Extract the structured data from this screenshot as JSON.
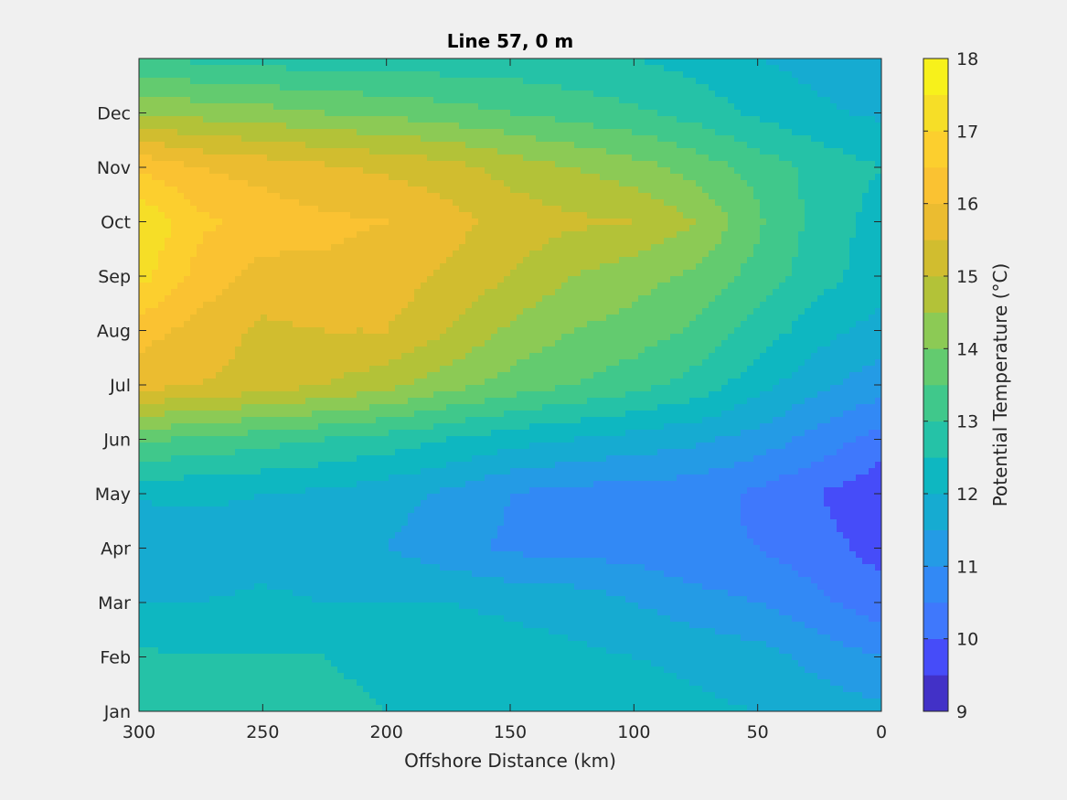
{
  "chart_data": {
    "type": "heatmap",
    "subtype": "filled-contour",
    "title": "Line 57, 0 m",
    "xlabel": "Offshore Distance (km)",
    "ylabel": "",
    "colorbar_label": "Potential Temperature (°C)",
    "x_reversed": true,
    "xlim": [
      0,
      300
    ],
    "ylim_months": [
      0,
      12
    ],
    "x_ticks": [
      300,
      250,
      200,
      150,
      100,
      50,
      0
    ],
    "y_tick_labels": [
      "Jan",
      "Feb",
      "Mar",
      "Apr",
      "May",
      "Jun",
      "Jul",
      "Aug",
      "Sep",
      "Oct",
      "Nov",
      "Dec"
    ],
    "colorbar_ticks": [
      9,
      10,
      11,
      12,
      13,
      14,
      15,
      16,
      17,
      18
    ],
    "clim": [
      9,
      18
    ],
    "contour_step": 0.5,
    "colormap": [
      "#3e26a8",
      "#4743f8",
      "#3f7bfc",
      "#2d8ff2",
      "#1aa7d7",
      "#0cb6c3",
      "#2ac4a2",
      "#4ecb7c",
      "#84cc5b",
      "#b6c136",
      "#dcbb2c",
      "#f9bd33",
      "#fcce2f",
      "#f5e125",
      "#f9fb15"
    ],
    "x_km": [
      0,
      25,
      50,
      75,
      100,
      125,
      150,
      175,
      200,
      225,
      250,
      275,
      300
    ],
    "y_month": [
      0,
      1,
      2,
      3,
      4,
      5,
      6,
      7,
      8,
      9,
      10,
      11,
      12
    ],
    "z_celsius": [
      [
        11.6,
        11.8,
        12.0,
        12.1,
        12.2,
        12.3,
        12.3,
        12.4,
        12.5,
        12.6,
        12.7,
        12.8,
        13.0
      ],
      [
        11.0,
        11.3,
        11.7,
        11.9,
        12.0,
        12.1,
        12.2,
        12.3,
        12.4,
        12.5,
        12.5,
        12.5,
        12.6
      ],
      [
        10.2,
        10.6,
        11.0,
        11.2,
        11.5,
        11.8,
        11.9,
        12.0,
        12.0,
        12.0,
        12.1,
        12.0,
        12.0
      ],
      [
        9.8,
        10.2,
        10.5,
        10.6,
        10.8,
        10.8,
        10.9,
        11.2,
        11.5,
        11.7,
        11.8,
        11.7,
        11.5
      ],
      [
        9.6,
        10.0,
        10.4,
        10.7,
        10.8,
        10.8,
        11.0,
        11.4,
        11.7,
        11.9,
        12.0,
        12.1,
        12.1
      ],
      [
        10.3,
        10.8,
        11.3,
        11.6,
        11.8,
        12.0,
        12.2,
        12.5,
        12.8,
        13.0,
        13.2,
        13.4,
        13.6
      ],
      [
        11.2,
        11.6,
        12.2,
        12.8,
        13.2,
        13.5,
        13.8,
        14.2,
        14.7,
        15.0,
        15.3,
        15.5,
        15.7
      ],
      [
        11.8,
        12.2,
        12.8,
        13.4,
        13.8,
        14.0,
        14.4,
        15.0,
        15.5,
        15.5,
        15.4,
        15.8,
        16.2
      ],
      [
        12.2,
        12.7,
        13.3,
        13.9,
        14.2,
        14.5,
        15.0,
        15.4,
        15.8,
        15.9,
        15.8,
        16.3,
        17.2
      ],
      [
        12.3,
        12.8,
        13.6,
        14.5,
        15.0,
        15.1,
        15.3,
        15.7,
        16.0,
        16.1,
        16.3,
        16.6,
        17.5
      ],
      [
        12.5,
        12.8,
        13.3,
        13.8,
        14.2,
        14.5,
        14.8,
        15.2,
        15.4,
        15.6,
        15.8,
        16.0,
        16.4
      ],
      [
        11.9,
        12.1,
        12.4,
        12.8,
        13.1,
        13.3,
        13.5,
        13.7,
        13.9,
        14.0,
        14.2,
        14.3,
        14.5
      ],
      [
        11.6,
        11.8,
        12.0,
        12.3,
        12.5,
        12.6,
        12.7,
        12.7,
        12.7,
        12.7,
        12.8,
        12.9,
        13.0
      ]
    ]
  }
}
